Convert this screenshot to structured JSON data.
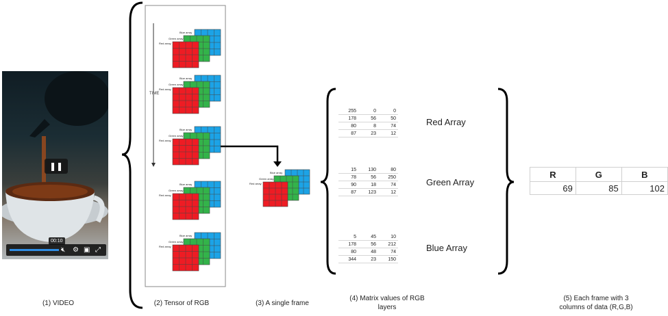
{
  "video": {
    "time": "00:10"
  },
  "stack_labels": {
    "blue": "Blue array",
    "green": "Green array",
    "red": "Red array"
  },
  "time_label": "TIME",
  "arrays": [
    {
      "name": "Red Array",
      "rows": [
        [
          "255",
          "0",
          "0"
        ],
        [
          "178",
          "56",
          "50"
        ],
        [
          "80",
          "8",
          "74"
        ],
        [
          "87",
          "23",
          "12"
        ]
      ]
    },
    {
      "name": "Green Array",
      "rows": [
        [
          "15",
          "130",
          "80"
        ],
        [
          "78",
          "56",
          "250"
        ],
        [
          "90",
          "18",
          "74"
        ],
        [
          "87",
          "123",
          "12"
        ]
      ]
    },
    {
      "name": "Blue Array",
      "rows": [
        [
          "5",
          "45",
          "10"
        ],
        [
          "178",
          "56",
          "212"
        ],
        [
          "80",
          "48",
          "74"
        ],
        [
          "344",
          "23",
          "150"
        ]
      ]
    }
  ],
  "rgb_table": {
    "headers": [
      "R",
      "G",
      "B"
    ],
    "values": [
      "69",
      "85",
      "102"
    ]
  },
  "captions": {
    "video": "(1) VIDEO",
    "tensor": "(2) Tensor of RGB",
    "frame": "(3) A single frame",
    "matrix": "(4) Matrix values of RGB layers",
    "columns": "(5) Each frame with 3 columns of data (R,G,B)"
  },
  "colors": {
    "red": "#ee1c24",
    "green": "#33b34a",
    "blue": "#1ca3e6"
  }
}
